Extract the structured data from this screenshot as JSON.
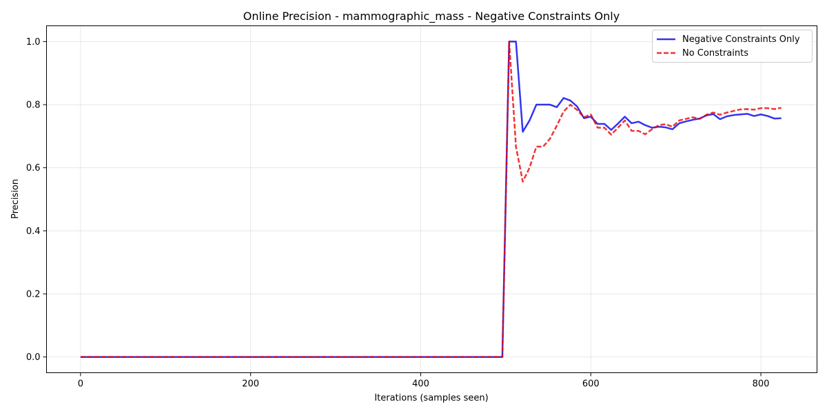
{
  "chart_data": {
    "type": "line",
    "title": "Online Precision - mammographic_mass - Negative Constraints Only",
    "xlabel": "Iterations (samples seen)",
    "ylabel": "Precision",
    "xlim": [
      -40,
      866
    ],
    "ylim": [
      -0.05,
      1.05
    ],
    "xticks": [
      0,
      200,
      400,
      600,
      800
    ],
    "yticks": [
      0.0,
      0.2,
      0.4,
      0.6,
      0.8,
      1.0
    ],
    "xtick_labels": [
      "0",
      "200",
      "400",
      "600",
      "800"
    ],
    "ytick_labels": [
      "0.0",
      "0.2",
      "0.4",
      "0.6",
      "0.8",
      "1.0"
    ],
    "grid": true,
    "legend_position": "top-right",
    "series": [
      {
        "name": "Negative Constraints Only",
        "color": "#0000ee",
        "style": "solid",
        "x": [
          0,
          496,
          504,
          512,
          520,
          528,
          536,
          544,
          552,
          560,
          568,
          576,
          584,
          592,
          600,
          608,
          616,
          624,
          632,
          640,
          648,
          656,
          664,
          672,
          680,
          688,
          696,
          704,
          712,
          720,
          728,
          736,
          744,
          752,
          760,
          768,
          776,
          784,
          792,
          800,
          808,
          816,
          824
        ],
        "y": [
          0.0,
          0.0,
          1.0,
          1.0,
          0.714,
          0.75,
          0.8,
          0.8,
          0.8,
          0.792,
          0.821,
          0.813,
          0.794,
          0.757,
          0.762,
          0.739,
          0.739,
          0.72,
          0.74,
          0.762,
          0.741,
          0.746,
          0.735,
          0.727,
          0.73,
          0.728,
          0.722,
          0.741,
          0.747,
          0.752,
          0.756,
          0.766,
          0.77,
          0.754,
          0.763,
          0.767,
          0.769,
          0.771,
          0.764,
          0.769,
          0.764,
          0.756,
          0.757
        ]
      },
      {
        "name": "No Constraints",
        "color": "#ee0000",
        "style": "dashed",
        "x": [
          0,
          496,
          504,
          512,
          520,
          528,
          536,
          544,
          552,
          560,
          568,
          576,
          584,
          592,
          600,
          608,
          616,
          624,
          632,
          640,
          648,
          656,
          664,
          672,
          680,
          688,
          696,
          704,
          712,
          720,
          728,
          736,
          744,
          752,
          760,
          768,
          776,
          784,
          792,
          800,
          808,
          816,
          824
        ],
        "y": [
          0.0,
          0.0,
          1.0,
          0.667,
          0.556,
          0.6,
          0.667,
          0.667,
          0.692,
          0.733,
          0.778,
          0.8,
          0.783,
          0.76,
          0.769,
          0.727,
          0.727,
          0.705,
          0.727,
          0.75,
          0.717,
          0.717,
          0.706,
          0.722,
          0.735,
          0.738,
          0.73,
          0.75,
          0.755,
          0.76,
          0.755,
          0.768,
          0.775,
          0.768,
          0.775,
          0.78,
          0.785,
          0.786,
          0.784,
          0.789,
          0.789,
          0.786,
          0.79
        ]
      }
    ]
  }
}
